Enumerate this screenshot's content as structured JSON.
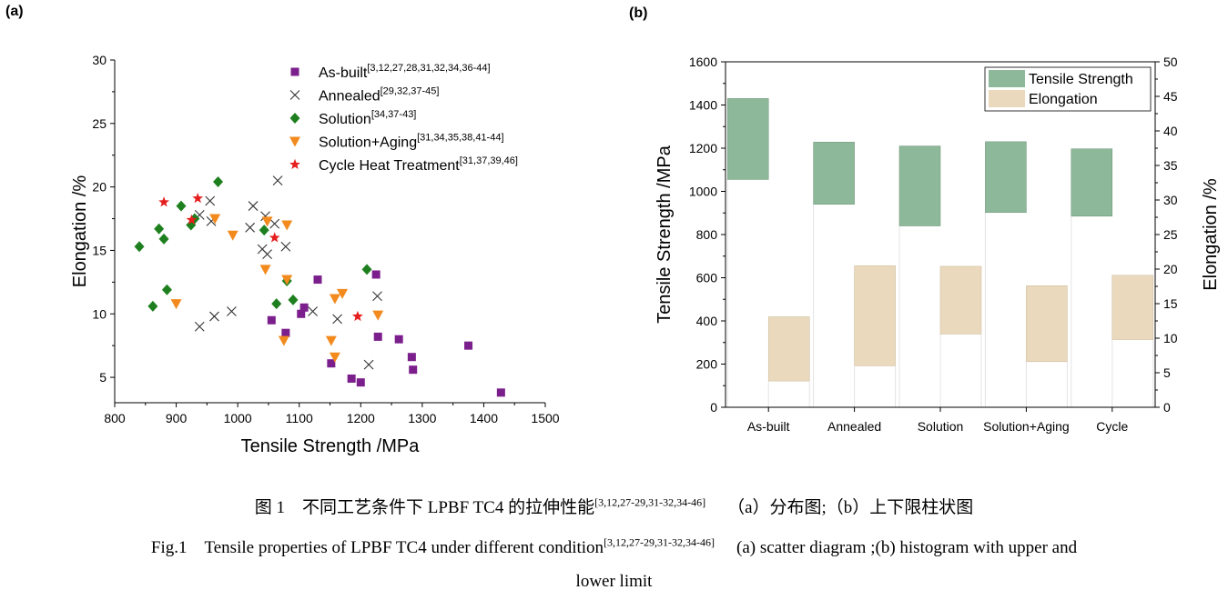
{
  "panels": {
    "a": "(a)",
    "b": "(b)"
  },
  "chart_data": [
    {
      "type": "scatter",
      "xlabel": "Tensile Strength /MPa",
      "ylabel": "Elongation /%",
      "xlim": [
        800,
        1500
      ],
      "ylim": [
        3,
        30
      ],
      "xticks": [
        800,
        900,
        1000,
        1100,
        1200,
        1300,
        1400,
        1500
      ],
      "yticks": [
        5,
        10,
        15,
        20,
        25,
        30
      ],
      "grid": false,
      "legend_position": "top-right",
      "series": [
        {
          "name": "As-built",
          "refs": "[3,12,27,28,31,32,34,36-44]",
          "marker": "square",
          "color": "#7B1F8C",
          "points": [
            [
              1055,
              9.5
            ],
            [
              1078,
              8.5
            ],
            [
              1103,
              10
            ],
            [
              1108,
              10.5
            ],
            [
              1130,
              12.7
            ],
            [
              1152,
              6.1
            ],
            [
              1185,
              4.9
            ],
            [
              1200,
              4.6
            ],
            [
              1225,
              13.1
            ],
            [
              1228,
              8.2
            ],
            [
              1262,
              8
            ],
            [
              1283,
              6.6
            ],
            [
              1285,
              5.6
            ],
            [
              1375,
              7.5
            ],
            [
              1428,
              3.8
            ]
          ]
        },
        {
          "name": "Annealed",
          "refs": "[29,32,37-45]",
          "marker": "x",
          "color": "#333333",
          "points": [
            [
              938,
              17.8
            ],
            [
              955,
              18.9
            ],
            [
              957,
              17.3
            ],
            [
              1020,
              16.8
            ],
            [
              1025,
              18.5
            ],
            [
              1040,
              15.1
            ],
            [
              1045,
              17.7
            ],
            [
              1048,
              14.7
            ],
            [
              1060,
              17.1
            ],
            [
              1065,
              20.5
            ],
            [
              1078,
              15.3
            ],
            [
              1122,
              10.2
            ],
            [
              1162,
              9.6
            ],
            [
              1213,
              6
            ],
            [
              1227,
              11.4
            ],
            [
              938,
              9
            ],
            [
              962,
              9.8
            ],
            [
              990,
              10.2
            ]
          ]
        },
        {
          "name": "Solution",
          "refs": "[34,37-43]",
          "marker": "diamond",
          "color": "#1E7F1E",
          "points": [
            [
              840,
              15.3
            ],
            [
              872,
              16.7
            ],
            [
              880,
              15.9
            ],
            [
              885,
              11.9
            ],
            [
              862,
              10.6
            ],
            [
              908,
              18.5
            ],
            [
              924,
              17
            ],
            [
              930,
              17.5
            ],
            [
              968,
              20.4
            ],
            [
              1043,
              16.6
            ],
            [
              1063,
              10.8
            ],
            [
              1080,
              12.6
            ],
            [
              1090,
              11.1
            ],
            [
              1210,
              13.5
            ]
          ]
        },
        {
          "name": "Solution+Aging",
          "refs": "[31,34,35,38,41-44]",
          "marker": "triangle-down",
          "color": "#F28A1E",
          "points": [
            [
              900,
              10.8
            ],
            [
              963,
              17.5
            ],
            [
              992,
              16.2
            ],
            [
              1045,
              13.5
            ],
            [
              1048,
              17.3
            ],
            [
              1075,
              7.9
            ],
            [
              1080,
              12.7
            ],
            [
              1080,
              17
            ],
            [
              1152,
              7.9
            ],
            [
              1158,
              6.6
            ],
            [
              1158,
              11.2
            ],
            [
              1170,
              11.6
            ],
            [
              1228,
              9.9
            ]
          ]
        },
        {
          "name": "Cycle Heat Treatment",
          "refs": "[31,37,39,46]",
          "marker": "star",
          "color": "#E61E1E",
          "points": [
            [
              880,
              18.8
            ],
            [
              925,
              17.4
            ],
            [
              935,
              19.1
            ],
            [
              1060,
              16
            ],
            [
              1195,
              9.8
            ]
          ]
        }
      ]
    },
    {
      "type": "bar",
      "categories": [
        "As-built",
        "Annealed",
        "Solution",
        "Solution+Aging",
        "Cycle"
      ],
      "ylabel": "Tensile Strength /MPa",
      "y2label": "Elongation /%",
      "ylim": [
        0,
        1600
      ],
      "y2lim": [
        0,
        50
      ],
      "yticks": [
        0,
        200,
        400,
        600,
        800,
        1000,
        1200,
        1400,
        1600
      ],
      "y2ticks": [
        0,
        5,
        10,
        15,
        20,
        25,
        30,
        35,
        40,
        45,
        50
      ],
      "grid": false,
      "legend_position": "top-right",
      "series": [
        {
          "name": "Tensile Strength",
          "axis": "left",
          "color": "#8DB99A",
          "ranges": [
            [
              1055,
              1430
            ],
            [
              940,
              1228
            ],
            [
              840,
              1210
            ],
            [
              902,
              1230
            ],
            [
              885,
              1197
            ]
          ]
        },
        {
          "name": "Elongation",
          "axis": "right",
          "color": "#EAD9BC",
          "ranges": [
            [
              3.8,
              13.1
            ],
            [
              6,
              20.5
            ],
            [
              10.6,
              20.4
            ],
            [
              6.6,
              17.6
            ],
            [
              9.8,
              19.1
            ]
          ]
        }
      ]
    }
  ],
  "caption": {
    "cn_main": "图 1　不同工艺条件下 LPBF TC4 的拉伸性能",
    "cn_refs": "[3,12,27-29,31-32,34-46]",
    "cn_sub": "（a）分布图;（b）上下限柱状图",
    "en_main": "Fig.1　Tensile properties of LPBF TC4 under different condition",
    "en_refs": "[3,12,27-29,31-32,34-46]",
    "en_sub": "(a) scatter diagram ;(b) histogram with upper and",
    "en_sub2": "lower limit"
  }
}
